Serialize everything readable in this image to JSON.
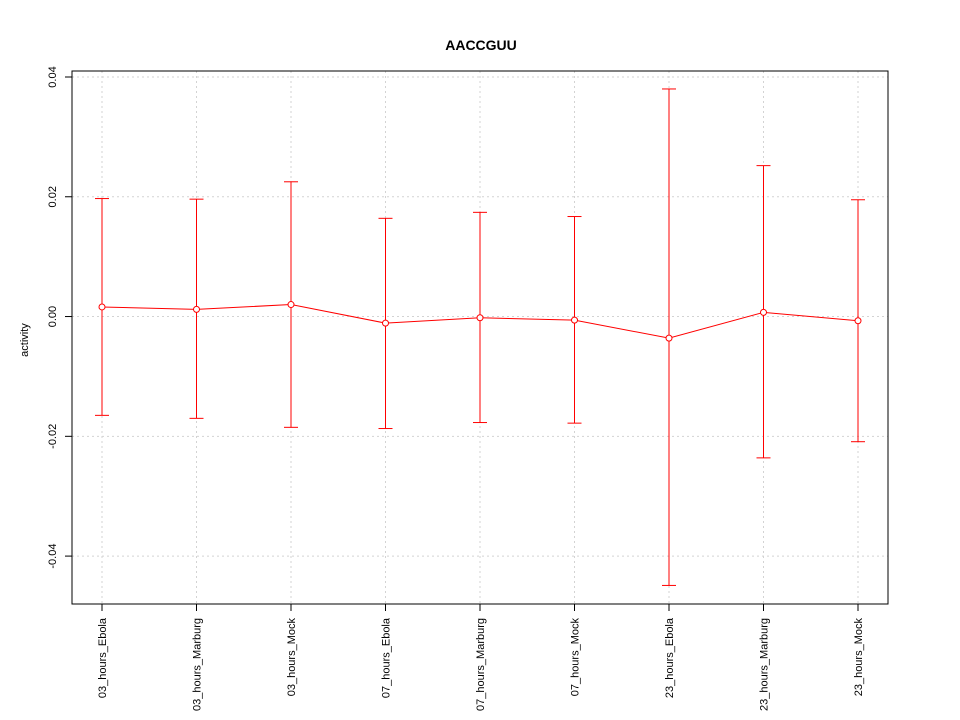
{
  "chart_data": {
    "type": "line",
    "title": "AACCGUU",
    "xlabel": "",
    "ylabel": "activity",
    "categories": [
      "03_hours_Ebola",
      "03_hours_Marburg",
      "03_hours_Mock",
      "07_hours_Ebola",
      "07_hours_Marburg",
      "07_hours_Mock",
      "23_hours_Ebola",
      "23_hours_Marburg",
      "23_hours_Mock"
    ],
    "values": [
      0.0016,
      0.0012,
      0.002,
      -0.0011,
      -0.0002,
      -0.0006,
      -0.0036,
      0.0007,
      -0.0007
    ],
    "error_upper": [
      0.0197,
      0.0196,
      0.0225,
      0.0164,
      0.0174,
      0.0167,
      0.038,
      0.0252,
      0.0195
    ],
    "error_lower": [
      -0.0165,
      -0.017,
      -0.0185,
      -0.0187,
      -0.0177,
      -0.0178,
      -0.0449,
      -0.0236,
      -0.0209
    ],
    "ylim": [
      -0.048,
      0.041
    ],
    "yticks": [
      -0.04,
      -0.02,
      0.0,
      0.02,
      0.04
    ],
    "ytick_labels": [
      "-0.04",
      "-0.02",
      "0.00",
      "0.02",
      "0.04"
    ],
    "grid": true,
    "colors": {
      "series": "#ff0000",
      "grid": "#d3d3d3",
      "axis": "#000000"
    }
  }
}
